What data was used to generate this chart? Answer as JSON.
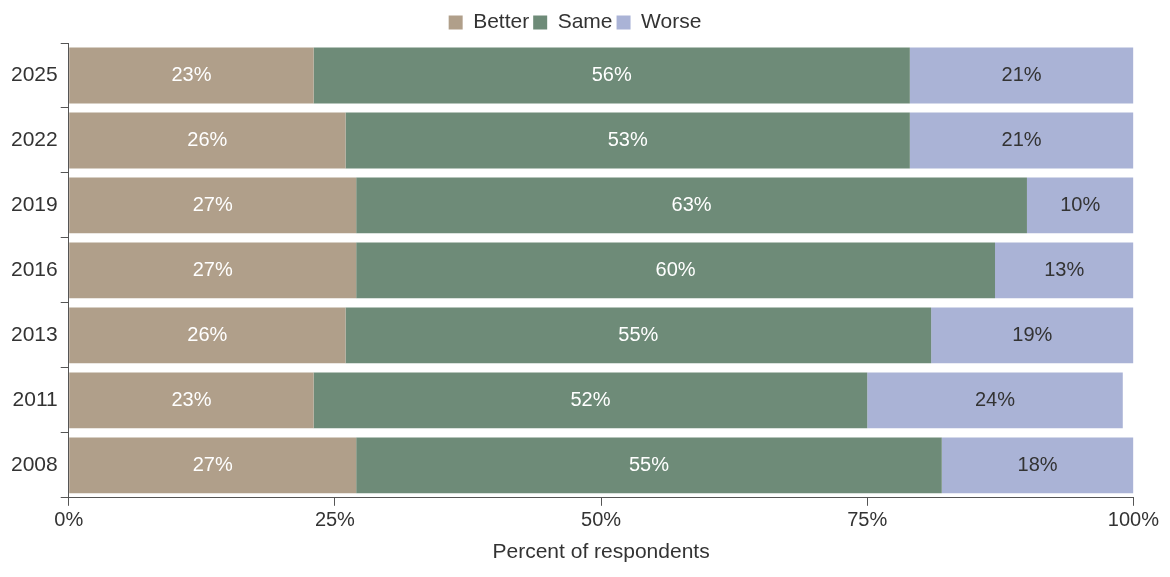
{
  "chart_data": {
    "type": "bar",
    "orientation": "horizontal",
    "stacked": true,
    "legend": "top",
    "grid": false,
    "xlabel": "Percent of respondents",
    "categories": [
      "2025",
      "2022",
      "2019",
      "2016",
      "2013",
      "2011",
      "2008"
    ],
    "series": [
      {
        "name": "Better",
        "color": "#b09f8a",
        "values": [
          23,
          26,
          27,
          27,
          26,
          23,
          27
        ],
        "value_labels": [
          "23%",
          "26%",
          "27%",
          "27%",
          "26%",
          "23%",
          "27%"
        ]
      },
      {
        "name": "Same",
        "color": "#6e8b78",
        "values": [
          56,
          53,
          63,
          60,
          55,
          52,
          55
        ],
        "value_labels": [
          "56%",
          "53%",
          "63%",
          "60%",
          "55%",
          "52%",
          "55%"
        ]
      },
      {
        "name": "Worse",
        "color": "#aab3d6",
        "values": [
          21,
          21,
          10,
          13,
          19,
          24,
          18
        ],
        "value_labels": [
          "21%",
          "21%",
          "10%",
          "13%",
          "19%",
          "24%",
          "18%"
        ]
      }
    ],
    "xlim": [
      0,
      100
    ],
    "xticks": [
      {
        "value": 0,
        "label": "0%"
      },
      {
        "value": 25,
        "label": "25%"
      },
      {
        "value": 50,
        "label": "50%"
      },
      {
        "value": 75,
        "label": "75%"
      },
      {
        "value": 100,
        "label": "100%"
      }
    ]
  }
}
